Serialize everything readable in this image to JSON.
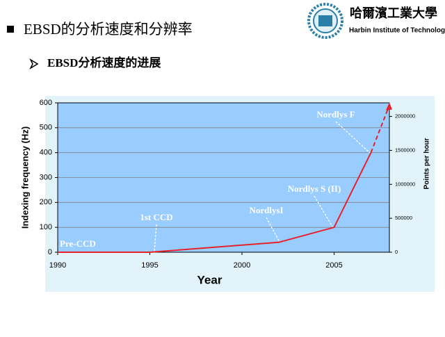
{
  "header": {
    "title": "EBSD的分析速度和分辨率",
    "subtitle": "EBSD分析速度的进展",
    "logo_cn": "哈爾濱工業大學",
    "logo_en": "Harbin Institute of Technology"
  },
  "chart_data": {
    "type": "line",
    "series": [
      {
        "color": "#e8202a",
        "x": [
          1990,
          1995,
          2002,
          2005,
          2007
        ],
        "values": [
          0,
          0,
          40,
          100,
          400
        ]
      },
      {
        "color": "#e8202a",
        "dashed": true,
        "x": [
          2007,
          2008
        ],
        "values": [
          400,
          590
        ]
      }
    ],
    "xlim": [
      1990,
      2008
    ],
    "xticks": [
      1990,
      1995,
      2000,
      2005
    ],
    "ylim": [
      0,
      600
    ],
    "yticks": [
      0,
      100,
      200,
      300,
      400,
      500,
      600
    ],
    "y2lim": [
      0,
      2200000
    ],
    "y2ticks": [
      0,
      500000,
      1000000,
      1500000,
      2000000
    ],
    "grid": true,
    "x_label": "Year",
    "y_label": "Indexing frequency (Hz)",
    "y2_label": "Points per hour",
    "annotations": [
      "Pre-CCD",
      "1st CCD",
      "NordlysI",
      "Nordlys S (II)",
      "Nordlys F"
    ]
  }
}
